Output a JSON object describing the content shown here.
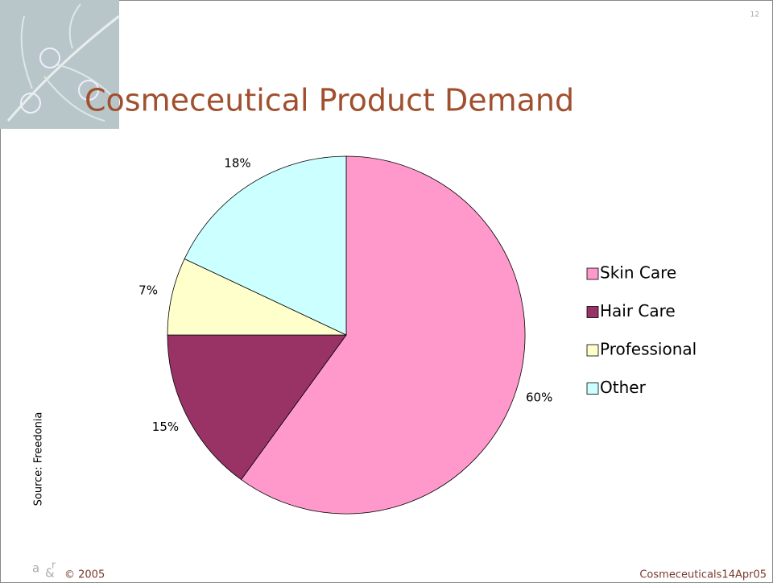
{
  "page_number": "12",
  "source": "Source: Freedonia",
  "footer": {
    "left": "© 2005",
    "right": "Cosmeceuticals14Apr05"
  },
  "chart_data": {
    "type": "pie",
    "title": "Cosmeceutical Product Demand",
    "categories": [
      "Skin Care",
      "Hair Care",
      "Professional",
      "Other"
    ],
    "values": [
      60,
      15,
      7,
      18
    ],
    "value_labels": [
      "60%",
      "15%",
      "7%",
      "18%"
    ],
    "colors": [
      "#ff99cc",
      "#993366",
      "#ffffcc",
      "#ccffff"
    ],
    "legend": "right"
  }
}
